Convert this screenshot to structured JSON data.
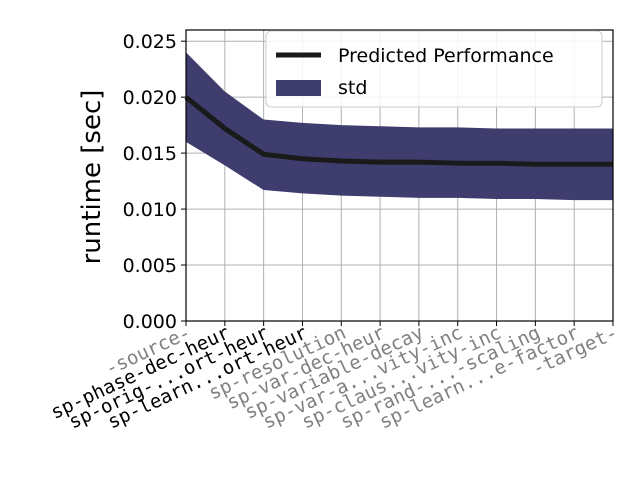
{
  "chart_data": {
    "type": "line",
    "title": "",
    "xlabel": "",
    "ylabel": "runtime [sec]",
    "ylim": [
      0,
      0.026
    ],
    "y_ticks": [
      "0.000",
      "0.005",
      "0.010",
      "0.015",
      "0.020",
      "0.025"
    ],
    "categories": [
      "-source-",
      "sp-phase-dec-heur",
      "sp-orig-...ort-heur",
      "sp-learn...ort-heur",
      "sp-resolution",
      "sp-var-dec-heur",
      "sp-variable-decay",
      "sp-var-a...vity-inc",
      "sp-claus...vity-inc",
      "sp-rand-...-scaling",
      "sp-learn...e-factor",
      "-target-"
    ],
    "category_colors": [
      "#808080",
      "#000000",
      "#000000",
      "#000000",
      "#808080",
      "#808080",
      "#808080",
      "#808080",
      "#808080",
      "#808080",
      "#808080",
      "#808080"
    ],
    "series": [
      {
        "name": "Predicted Performance",
        "kind": "line",
        "color": "#1a1a1a",
        "values": [
          0.02,
          0.0172,
          0.0149,
          0.0145,
          0.0143,
          0.0142,
          0.0142,
          0.0141,
          0.0141,
          0.014,
          0.014,
          0.014
        ]
      },
      {
        "name": "std",
        "kind": "band",
        "color": "#3f3d6e",
        "upper": [
          0.024,
          0.0205,
          0.018,
          0.0177,
          0.0175,
          0.0174,
          0.0173,
          0.0173,
          0.0172,
          0.0172,
          0.0172,
          0.0172
        ],
        "lower": [
          0.016,
          0.0139,
          0.0117,
          0.0114,
          0.0112,
          0.0111,
          0.011,
          0.011,
          0.0109,
          0.0109,
          0.0108,
          0.0108
        ]
      }
    ],
    "grid": true,
    "legend": "top-right"
  }
}
